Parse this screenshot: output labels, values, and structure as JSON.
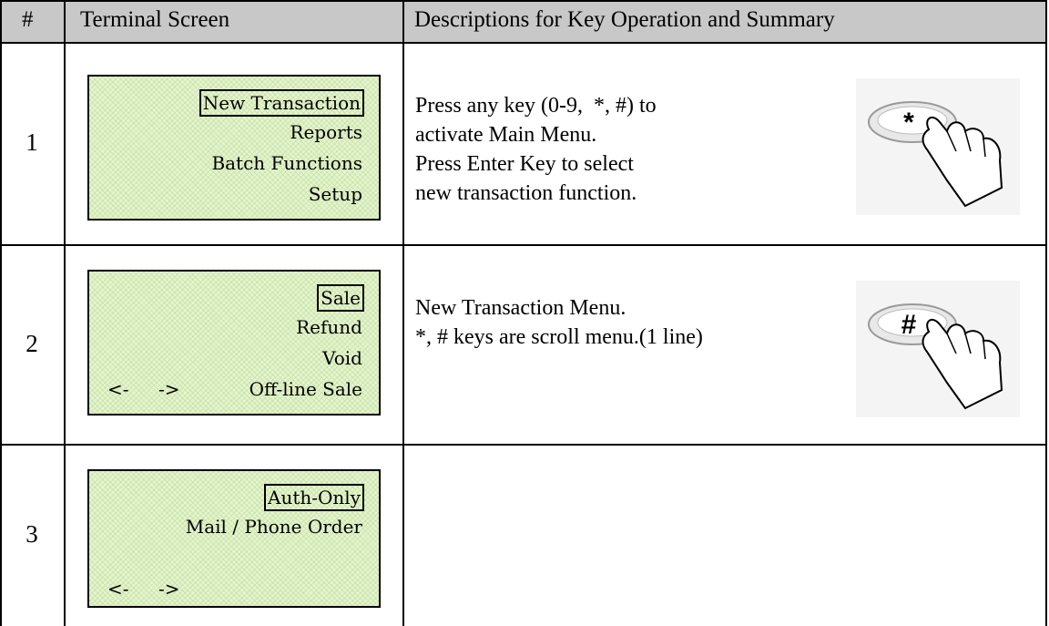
{
  "header": {
    "num": "#",
    "screen": "Terminal Screen",
    "desc": "Descriptions for Key Operation and Summary"
  },
  "rows": [
    {
      "num": "1",
      "screen": {
        "lines": [
          "New Transaction",
          "Reports",
          "Batch Functions",
          "Setup"
        ]
      },
      "desc": [
        "Press any key (0-9,  *, #) to",
        "activate Main Menu.",
        "Press Enter Key to select",
        "new transaction function."
      ],
      "key": "*"
    },
    {
      "num": "2",
      "screen": {
        "lines": [
          "Sale",
          "Refund",
          "Void",
          "Off-line Sale"
        ],
        "nav": [
          "<-",
          "->"
        ]
      },
      "desc": [
        "New Transaction Menu.",
        "*, # keys are scroll menu.(1 line)"
      ],
      "key": "#"
    },
    {
      "num": "3",
      "screen": {
        "lines": [
          "Auth-Only",
          "Mail / Phone Order"
        ],
        "nav": [
          "<-",
          "->"
        ]
      }
    }
  ]
}
